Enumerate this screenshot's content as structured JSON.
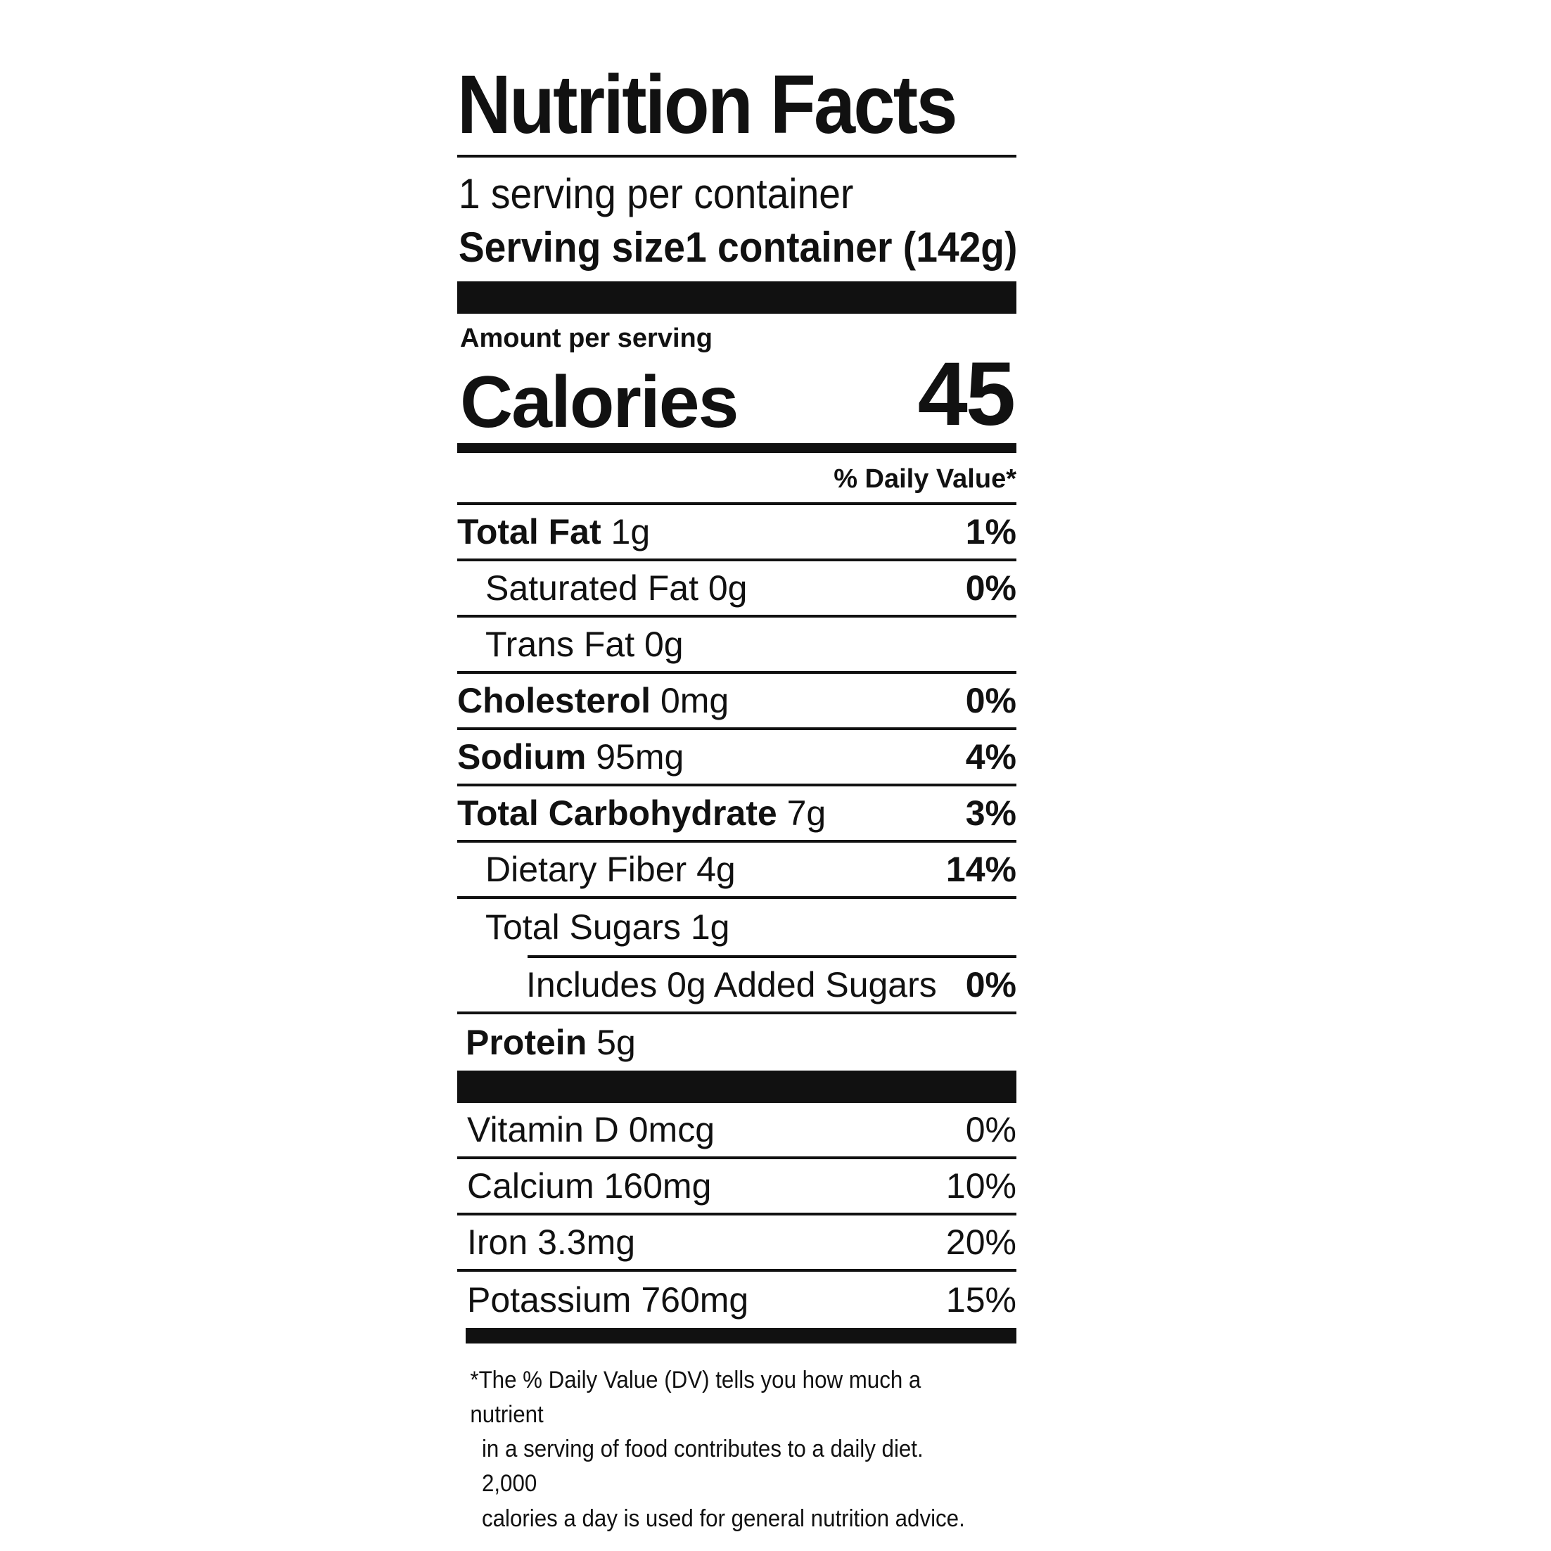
{
  "label": {
    "title": "Nutrition Facts",
    "servings_per_container": "1 serving per container",
    "serving_size_label": "Serving size",
    "serving_size_value": "1 container (142g)",
    "amount_per_serving": "Amount per serving",
    "calories_label": "Calories",
    "calories_value": "45",
    "daily_value_header": "% Daily Value*"
  },
  "nutrients": [
    {
      "name": "Total Fat",
      "amount": "1g",
      "dv": "1%"
    },
    {
      "name": "Saturated Fat",
      "amount": "0g",
      "dv": "0%"
    },
    {
      "name": "Trans Fat",
      "amount": "0g",
      "dv": ""
    },
    {
      "name": "Cholesterol",
      "amount": "0mg",
      "dv": "0%"
    },
    {
      "name": "Sodium",
      "amount": "95mg",
      "dv": "4%"
    },
    {
      "name": "Total Carbohydrate",
      "amount": "7g",
      "dv": "3%"
    },
    {
      "name": "Dietary Fiber",
      "amount": "4g",
      "dv": "14%"
    },
    {
      "name": "Total Sugars",
      "amount": "1g",
      "dv": ""
    },
    {
      "name": "Includes 0g Added Sugars",
      "amount": "",
      "dv": "0%"
    },
    {
      "name": "Protein",
      "amount": "5g",
      "dv": ""
    }
  ],
  "minerals": [
    {
      "name": "Vitamin D",
      "amount": "0mcg",
      "dv": "0%"
    },
    {
      "name": "Calcium",
      "amount": "160mg",
      "dv": "10%"
    },
    {
      "name": "Iron",
      "amount": "3.3mg",
      "dv": "20%"
    },
    {
      "name": "Potassium",
      "amount": "760mg",
      "dv": "15%"
    }
  ],
  "footnote": [
    "*The % Daily Value (DV) tells you how much a nutrient",
    "in a serving of food contributes to a daily diet. 2,000",
    "calories a day is used for general nutrition advice."
  ]
}
